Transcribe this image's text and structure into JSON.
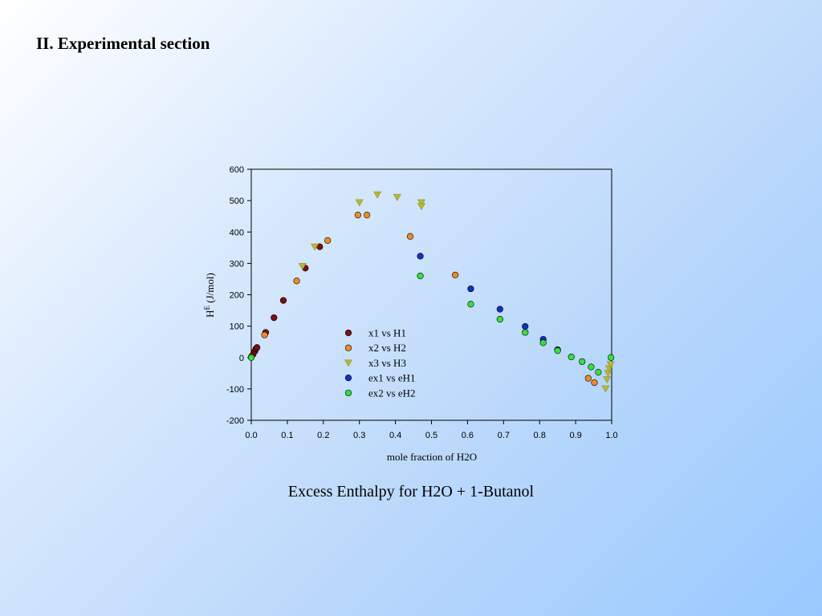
{
  "slide": {
    "section_title": "II. Experimental section",
    "caption": "Excess Enthalpy for H2O + 1-Butanol"
  },
  "chart_data": {
    "type": "scatter",
    "xlabel": "mole fraction of H2O",
    "ylabel_main": "H",
    "ylabel_superscript": "E",
    "ylabel_unit": " (J/mol)",
    "xlim": [
      0.0,
      1.0
    ],
    "ylim": [
      -200,
      600
    ],
    "x_ticks": [
      "0.0",
      "0.1",
      "0.2",
      "0.3",
      "0.4",
      "0.5",
      "0.6",
      "0.7",
      "0.8",
      "0.9",
      "1.0"
    ],
    "y_ticks": [
      "-200",
      "-100",
      "0",
      "100",
      "200",
      "300",
      "400",
      "500",
      "600"
    ],
    "grid": false,
    "legend_position": "center",
    "series": [
      {
        "name": "x1 vs H1",
        "marker": "circle",
        "color": "#7a1010",
        "x": [
          0.0,
          0.005,
          0.01,
          0.013,
          0.016,
          0.04,
          0.063,
          0.089,
          0.15,
          0.19
        ],
        "y": [
          2,
          10,
          20,
          28,
          32,
          80,
          127,
          182,
          285,
          353
        ]
      },
      {
        "name": "x2 vs H2",
        "marker": "circle",
        "color": "#f08a28",
        "x": [
          0.037,
          0.126,
          0.212,
          0.296,
          0.321,
          0.441,
          0.566,
          0.935,
          0.952
        ],
        "y": [
          72,
          244,
          373,
          454,
          454,
          386,
          263,
          -66,
          -80
        ]
      },
      {
        "name": "x3 vs H3",
        "marker": "triangle-down",
        "color": "#b5b837",
        "x": [
          0.142,
          0.176,
          0.3,
          0.35,
          0.405,
          0.472,
          0.472,
          0.983,
          0.987,
          0.99,
          0.993,
          0.997
        ],
        "y": [
          291,
          353,
          494,
          519,
          511,
          494,
          482,
          -99,
          -70,
          -50,
          -35,
          -22
        ]
      },
      {
        "name": "ex1 vs eH1",
        "marker": "circle",
        "color": "#1030c8",
        "x": [
          0.469,
          0.609,
          0.69,
          0.76,
          0.81,
          0.85
        ],
        "y": [
          323,
          219,
          154,
          99,
          58,
          25
        ]
      },
      {
        "name": "ex2 vs eH2",
        "marker": "circle",
        "color": "#33e03f",
        "x": [
          0.0,
          0.469,
          0.609,
          0.69,
          0.76,
          0.81,
          0.85,
          0.888,
          0.918,
          0.943,
          0.963,
          0.998
        ],
        "y": [
          0,
          260,
          170,
          122,
          80,
          47,
          22,
          2,
          -13,
          -30,
          -47,
          0
        ]
      }
    ]
  }
}
